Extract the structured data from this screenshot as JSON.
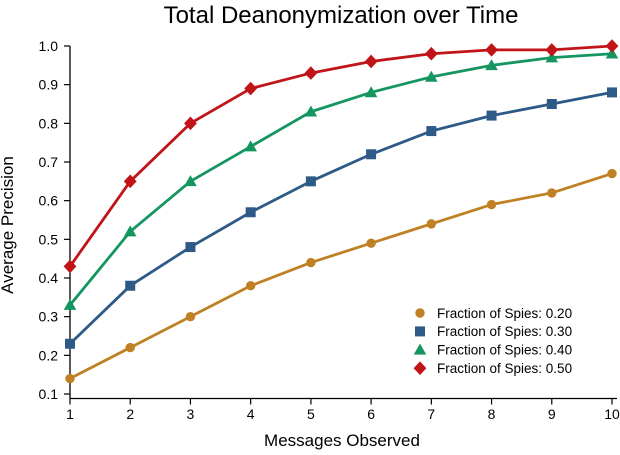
{
  "chart_data": {
    "type": "line",
    "title": "Total Deanonymization over Time",
    "xlabel": "Messages Observed",
    "ylabel": "Average Precision",
    "x": [
      1,
      2,
      3,
      4,
      5,
      6,
      7,
      8,
      9,
      10
    ],
    "xlim": [
      1,
      10
    ],
    "ylim": [
      0.1,
      1.0
    ],
    "yticks": [
      "1.0",
      "0.9",
      "0.8",
      "0.7",
      "0.6",
      "0.5",
      "0.4",
      "0.3",
      "0.2",
      "0.1"
    ],
    "grid": false,
    "legend_position": "lower-right",
    "background_color": "#ffffff",
    "axis_color": "#000000",
    "series": [
      {
        "name": "Fraction of Spies: 0.20",
        "marker": "circle",
        "color": "#BF8124",
        "values": [
          0.14,
          0.22,
          0.3,
          0.38,
          0.44,
          0.49,
          0.54,
          0.59,
          0.62,
          0.67
        ]
      },
      {
        "name": "Fraction of Spies: 0.30",
        "marker": "square",
        "color": "#2E5A87",
        "values": [
          0.23,
          0.38,
          0.48,
          0.57,
          0.65,
          0.72,
          0.78,
          0.82,
          0.85,
          0.88
        ]
      },
      {
        "name": "Fraction of Spies: 0.40",
        "marker": "triangle",
        "color": "#159660",
        "values": [
          0.33,
          0.52,
          0.65,
          0.74,
          0.83,
          0.88,
          0.92,
          0.95,
          0.97,
          0.98
        ]
      },
      {
        "name": "Fraction of Spies: 0.50",
        "marker": "diamond",
        "color": "#C11419",
        "values": [
          0.43,
          0.65,
          0.8,
          0.89,
          0.93,
          0.96,
          0.98,
          0.99,
          0.99,
          1.0
        ]
      }
    ]
  }
}
